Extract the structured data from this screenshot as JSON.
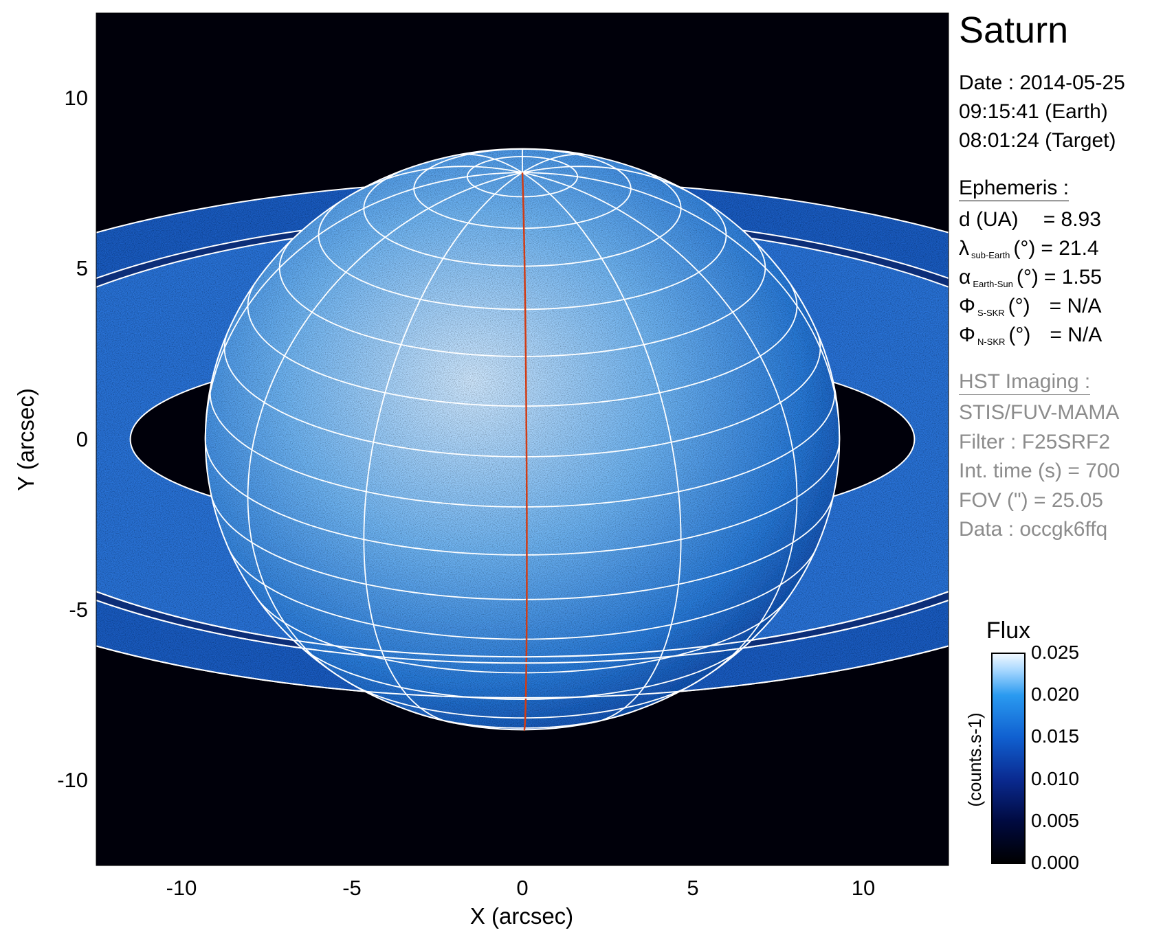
{
  "info": {
    "target": "Saturn",
    "date": "Date : 2014-05-25",
    "time_earth": "09:15:41 (Earth)",
    "time_target": "08:01:24 (Target)",
    "ephemeris_title": "Ephemeris :",
    "ephemeris": [
      {
        "sym": "d (UA)",
        "sub": "",
        "unit": "",
        "value": "= 8.93"
      },
      {
        "sym": "λ",
        "sub": "sub-Earth",
        "unit": "(°)",
        "value": "= 21.4"
      },
      {
        "sym": "α",
        "sub": "Earth-Sun",
        "unit": "(°)",
        "value": "= 1.55"
      },
      {
        "sym": "Φ",
        "sub": "S-SKR",
        "unit": "(°)",
        "value": "= N/A"
      },
      {
        "sym": "Φ",
        "sub": "N-SKR",
        "unit": "(°)",
        "value": "= N/A"
      }
    ],
    "imaging_title": "HST Imaging :",
    "imaging": [
      "STIS/FUV-MAMA",
      "Filter : F25SRF2",
      "Int. time (s) = 700",
      "FOV (\") = 25.05",
      "Data : occgk6ffq"
    ]
  },
  "chart_data": {
    "type": "heatmap",
    "title": "Saturn",
    "xlabel": "X (arcsec)",
    "ylabel": "Y (arcsec)",
    "xlim": [
      -12.5,
      12.5
    ],
    "ylim": [
      -12.5,
      12.5
    ],
    "xticks": [
      "-10",
      "-5",
      "0",
      "5",
      "10"
    ],
    "yticks": [
      "10",
      "5",
      "0",
      "-5",
      "-10"
    ],
    "grid_overlay": "planetocentric latitude/longitude grid and ring outlines in white, central meridian in red",
    "colorbar": {
      "title": "Flux",
      "label": "(counts.s-1)",
      "range": [
        0.0,
        0.025
      ],
      "ticks": [
        "0.025",
        "0.020",
        "0.015",
        "0.010",
        "0.005",
        "0.000"
      ],
      "colormap": [
        "#000000",
        "#000a40",
        "#0a2a90",
        "#1060d0",
        "#2a9af0",
        "#a8d8ff",
        "#f4faff"
      ]
    },
    "colors": {
      "background": "#00000a",
      "grid": "#ffffff",
      "central_meridian": "#d23c14"
    }
  }
}
